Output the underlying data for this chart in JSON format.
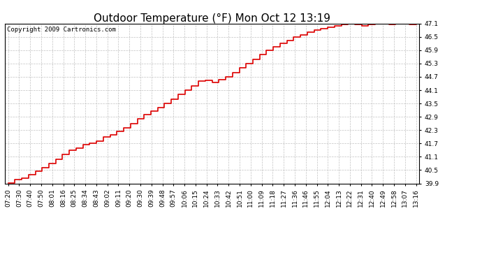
{
  "title": "Outdoor Temperature (°F) Mon Oct 12 13:19",
  "copyright_text": "Copyright 2009 Cartronics.com",
  "line_color": "#dd0000",
  "bg_color": "#ffffff",
  "grid_color": "#bbbbbb",
  "border_color": "#000000",
  "ylim": [
    39.9,
    47.1
  ],
  "yticks": [
    39.9,
    40.5,
    41.1,
    41.7,
    42.3,
    42.9,
    43.5,
    44.1,
    44.7,
    45.3,
    45.9,
    46.5,
    47.1
  ],
  "xtick_labels": [
    "07:20",
    "07:30",
    "07:40",
    "07:50",
    "08:01",
    "08:16",
    "08:25",
    "08:34",
    "08:43",
    "09:02",
    "09:11",
    "09:20",
    "09:30",
    "09:39",
    "09:48",
    "09:57",
    "10:06",
    "10:15",
    "10:24",
    "10:33",
    "10:42",
    "10:51",
    "11:00",
    "11:09",
    "11:18",
    "11:27",
    "11:36",
    "11:46",
    "11:55",
    "12:04",
    "12:13",
    "12:22",
    "12:31",
    "12:40",
    "12:49",
    "12:58",
    "13:07",
    "13:16"
  ],
  "y_values": [
    39.92,
    40.08,
    40.15,
    40.3,
    40.45,
    40.6,
    40.8,
    41.0,
    41.2,
    41.4,
    41.5,
    41.65,
    41.7,
    41.8,
    42.0,
    42.1,
    42.25,
    42.4,
    42.6,
    42.8,
    43.0,
    43.15,
    43.3,
    43.5,
    43.7,
    43.9,
    44.1,
    44.3,
    44.5,
    44.55,
    44.45,
    44.58,
    44.7,
    44.9,
    45.1,
    45.3,
    45.5,
    45.7,
    45.9,
    46.05,
    46.2,
    46.35,
    46.5,
    46.6,
    46.7,
    46.8,
    46.88,
    46.95,
    47.0,
    47.05,
    47.08,
    47.05,
    47.0,
    47.05,
    47.08,
    47.1,
    47.05,
    47.08,
    47.1,
    47.05,
    47.1
  ],
  "title_fontsize": 11,
  "tick_fontsize": 6.5,
  "copyright_fontsize": 6.5,
  "line_width": 1.2
}
